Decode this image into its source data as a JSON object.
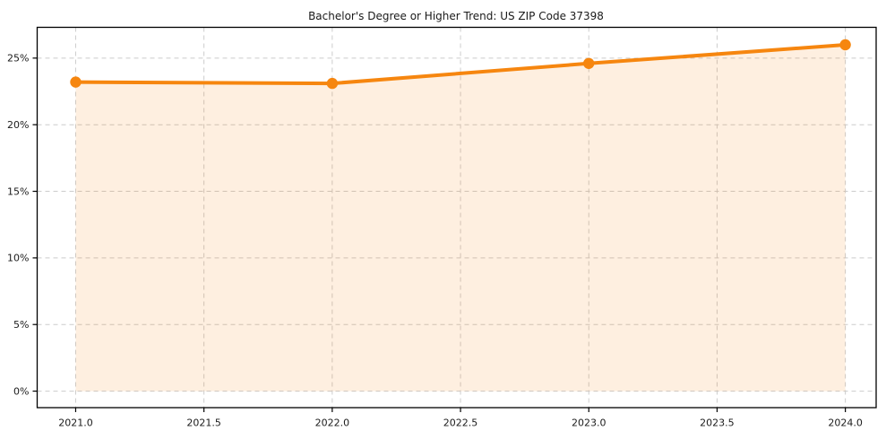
{
  "chart_data": {
    "type": "area",
    "title": "Bachelor's Degree or Higher Trend: US ZIP Code 37398",
    "x": [
      2021,
      2022,
      2023,
      2024
    ],
    "values": [
      23.2,
      23.1,
      24.6,
      26.0
    ],
    "xlabel": "",
    "ylabel": "",
    "xlim": [
      2020.85,
      2024.12
    ],
    "ylim": [
      -1.24,
      27.31
    ],
    "xticks": [
      {
        "value": 2021.0,
        "label": "2021.0"
      },
      {
        "value": 2021.5,
        "label": "2021.5"
      },
      {
        "value": 2022.0,
        "label": "2022.0"
      },
      {
        "value": 2022.5,
        "label": "2022.5"
      },
      {
        "value": 2023.0,
        "label": "2023.0"
      },
      {
        "value": 2023.5,
        "label": "2023.5"
      },
      {
        "value": 2024.0,
        "label": "2024.0"
      }
    ],
    "yticks": [
      {
        "value": 0,
        "label": "0%"
      },
      {
        "value": 5,
        "label": "5%"
      },
      {
        "value": 10,
        "label": "10%"
      },
      {
        "value": 15,
        "label": "15%"
      },
      {
        "value": 20,
        "label": "20%"
      },
      {
        "value": 25,
        "label": "25%"
      }
    ],
    "grid": true,
    "grid_style": "dashed",
    "legend": "none",
    "fill_baseline": 0,
    "colors": {
      "line": "#F6860F",
      "fill": "rgba(246,134,15,0.13)",
      "grid": "#cccccc",
      "spine": "#000000",
      "text": "#1a1a1a"
    }
  }
}
